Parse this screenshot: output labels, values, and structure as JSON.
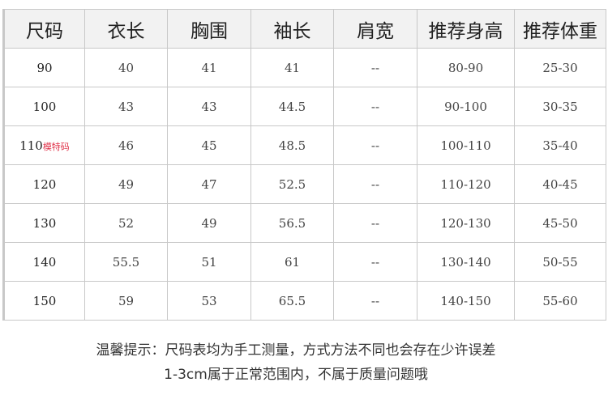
{
  "headers": [
    "尺码",
    "衣长",
    "胸围",
    "袖长",
    "肩宽",
    "推荐身高",
    "推荐体重"
  ],
  "rows": [
    {
      "size": "90",
      "tag": "",
      "cells": [
        "40",
        "41",
        "41",
        "--",
        "80-90",
        "25-30"
      ]
    },
    {
      "size": "100",
      "tag": "",
      "cells": [
        "43",
        "43",
        "44.5",
        "--",
        "90-100",
        "30-35"
      ]
    },
    {
      "size": "110",
      "tag": "模特码",
      "cells": [
        "46",
        "45",
        "48.5",
        "--",
        "100-110",
        "35-40"
      ]
    },
    {
      "size": "120",
      "tag": "",
      "cells": [
        "49",
        "47",
        "52.5",
        "--",
        "110-120",
        "40-45"
      ]
    },
    {
      "size": "130",
      "tag": "",
      "cells": [
        "52",
        "49",
        "56.5",
        "--",
        "120-130",
        "45-50"
      ]
    },
    {
      "size": "140",
      "tag": "",
      "cells": [
        "55.5",
        "51",
        "61",
        "--",
        "130-140",
        "50-55"
      ]
    },
    {
      "size": "150",
      "tag": "",
      "cells": [
        "59",
        "53",
        "65.5",
        "--",
        "140-150",
        "55-60"
      ]
    }
  ],
  "notes": {
    "line1": "温馨提示：尺码表均为手工测量，方式方法不同也会存在少许误差",
    "line2": "1-3cm属于正常范围内，不属于质量问题哦"
  },
  "colors": {
    "header_bg": "#f2f2f2",
    "border": "#c8c8c8",
    "tag": "#e0334a"
  }
}
